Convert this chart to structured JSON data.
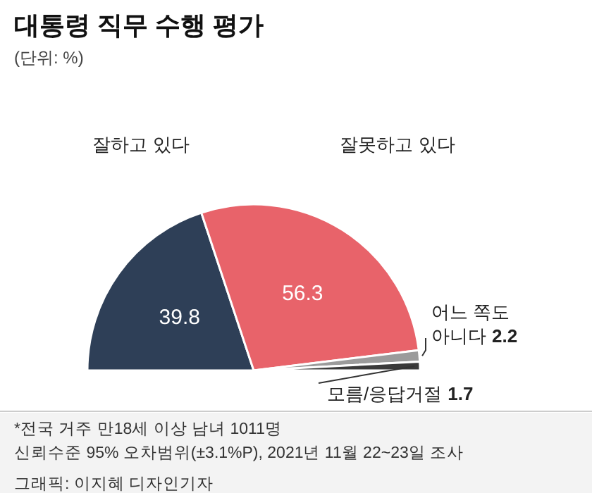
{
  "chart_data": {
    "type": "pie",
    "title": "대통령 직무 수행 평가",
    "subtitle": "(단위: %)",
    "categories": [
      "잘하고 있다",
      "잘못하고 있다",
      "어느 쪽도 아니다",
      "모름/응답거절"
    ],
    "values": [
      39.8,
      56.3,
      2.2,
      1.7
    ],
    "colors": [
      "#2e3f57",
      "#e8636a",
      "#9b9b9b",
      "#3a3a3a"
    ],
    "data_labels": true,
    "annotations": [
      "*전국 거주 만18세 이상 남녀 1011명",
      "신뢰수준 95% 오차범위(±3.1%P), 2021년 11월 22~23일 조사",
      "그래픽: 이지혜 디자인기자"
    ]
  }
}
